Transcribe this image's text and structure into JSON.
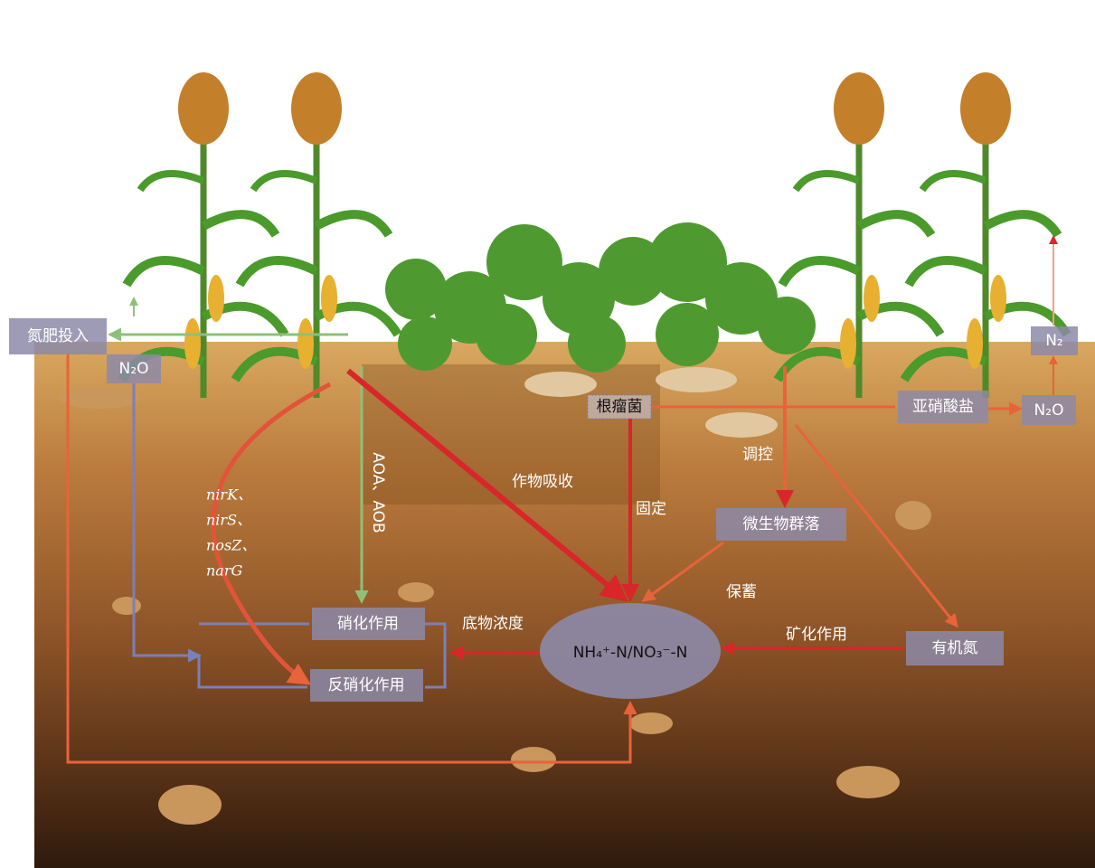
{
  "nodes": {
    "fertilizer": "氮肥投入",
    "n2o_left": "N₂O",
    "n2": "N₂",
    "n2o_right": "N₂O",
    "nitrite": "亚硝酸盐",
    "rhizobium": "根瘤菌",
    "microbes": "微生物群落",
    "organic_n": "有机氮",
    "nitrification": "硝化作用",
    "denitrification": "反硝化作用",
    "soil_n": "NH₄⁺-N/NO₃⁻-N"
  },
  "labels": {
    "regulation": "调控",
    "uptake": "作物吸收",
    "fixation": "固定",
    "retention": "保蓄",
    "mineralization": "矿化作用",
    "ammonia_oxidizers": "AOA、AOB",
    "substrate": "底物浓度",
    "genes": [
      "nirK、",
      "nirS、",
      "nosZ、",
      "narG"
    ]
  }
}
